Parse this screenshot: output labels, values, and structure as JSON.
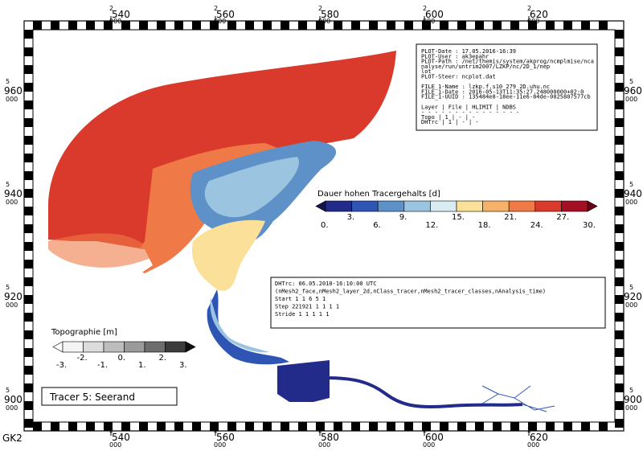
{
  "map": {
    "frame_label": "GK2",
    "x_ticks": [
      {
        "major": "2",
        "minor": "540",
        "sub": "000"
      },
      {
        "major": "2",
        "minor": "560",
        "sub": "000"
      },
      {
        "major": "2",
        "minor": "580",
        "sub": "000"
      },
      {
        "major": "2",
        "minor": "600",
        "sub": "000"
      },
      {
        "major": "2",
        "minor": "620",
        "sub": "000"
      }
    ],
    "y_ticks": [
      {
        "major": "5",
        "minor": "960",
        "sub": "000"
      },
      {
        "major": "5",
        "minor": "940",
        "sub": "000"
      },
      {
        "major": "5",
        "minor": "920",
        "sub": "000"
      },
      {
        "major": "5",
        "minor": "900",
        "sub": "000"
      }
    ]
  },
  "info_box": {
    "lines": [
      "PLOT-Date : 17.05.2016-16:39",
      "PLOT-User : ak3epahr",
      "PLOT-Path : /net/themis/system/akprog/ncmplmise/nca",
      "            nalyse/run/untrim2007/LZKP/nc/2D_1/nep",
      "            lot",
      "PLOT-Steer: ncplot.dat",
      "",
      "FILE_1-Name : lzkp.f.s10_279_2D.uhu.nc",
      "FILE_1-Date : 2016-05-13T11:35:27.248000000+02:0",
      "FILE_1-UUID : 135484e8-18ee-11e6-84de-0025807577cb",
      "",
      "Layer | File | HLIMIT | NDBS",
      "- - - - - - - - - - - - - - -",
      "Topo  |  1   |   -    |  -",
      "DHTrc |  1   |   -    |  -"
    ]
  },
  "tracer_legend": {
    "title": "Dauer hohen Tracergehalts [d]",
    "colors": [
      "#222a8a",
      "#2f55b4",
      "#5d91c8",
      "#9ac4df",
      "#d8ecf2",
      "#fbe09a",
      "#f7b26a",
      "#ef7a48",
      "#d93a2c",
      "#a50f24"
    ],
    "labels_low": [
      "0.",
      "3.",
      "6.",
      "9.",
      "12.",
      "15.",
      "18.",
      "21.",
      "24.",
      "27.",
      "30."
    ],
    "end_low_color": "#141550",
    "end_high_color": "#6a0018"
  },
  "data_box": {
    "lines": [
      "DHTrc: 06.05.2010-16:10:00 UTC",
      "(nMesh2_face,nMesh2_layer_2d,nClass_tracer,nMesh2_tracer_classes,nAnalysis_time)",
      "Start       1        1        6        5        1",
      "Step   221921       1        1        1        1",
      "Stride      1        1        1        1        1"
    ]
  },
  "topo_legend": {
    "title": "Topographie [m]",
    "colors": [
      "#f4f4f4",
      "#dcdcdc",
      "#bdbdbd",
      "#9a9a9a",
      "#6e6e6e",
      "#3c3c3c"
    ],
    "labels": [
      "-3.",
      "-2.",
      "-1.",
      "0.",
      "1.",
      "2.",
      "3."
    ],
    "end_low_color": "#ffffff",
    "end_high_color": "#101010"
  },
  "title_box": {
    "text": "Tracer 5: Seerand"
  }
}
